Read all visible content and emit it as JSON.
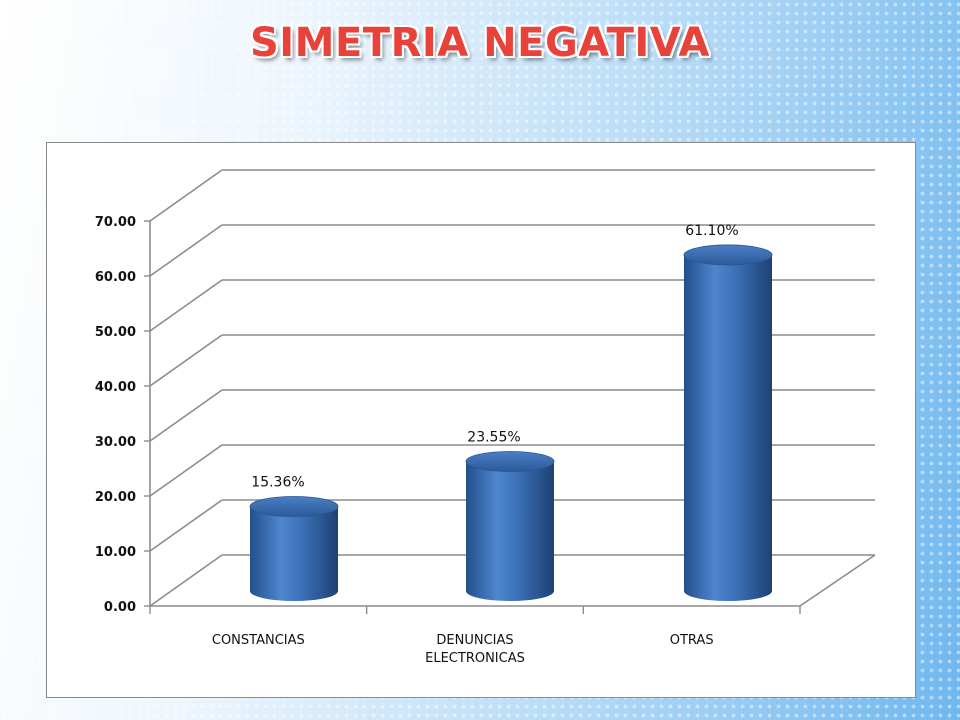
{
  "title": "SIMETRIA NEGATIVA",
  "chart_data": {
    "type": "bar",
    "categories": [
      [
        "CONSTANCIAS"
      ],
      [
        "DENUNCIAS",
        "ELECTRONICAS"
      ],
      [
        "OTRAS"
      ]
    ],
    "values": [
      15.36,
      23.55,
      61.1
    ],
    "data_labels": [
      "15.36%",
      "23.55%",
      "61.10%"
    ],
    "ylim": [
      0,
      70
    ],
    "yticks": [
      "0.00",
      "10.00",
      "20.00",
      "30.00",
      "40.00",
      "50.00",
      "60.00",
      "70.00"
    ],
    "grid": true,
    "style": "3d-cylinder",
    "bar_color": "#3b6fb5"
  }
}
